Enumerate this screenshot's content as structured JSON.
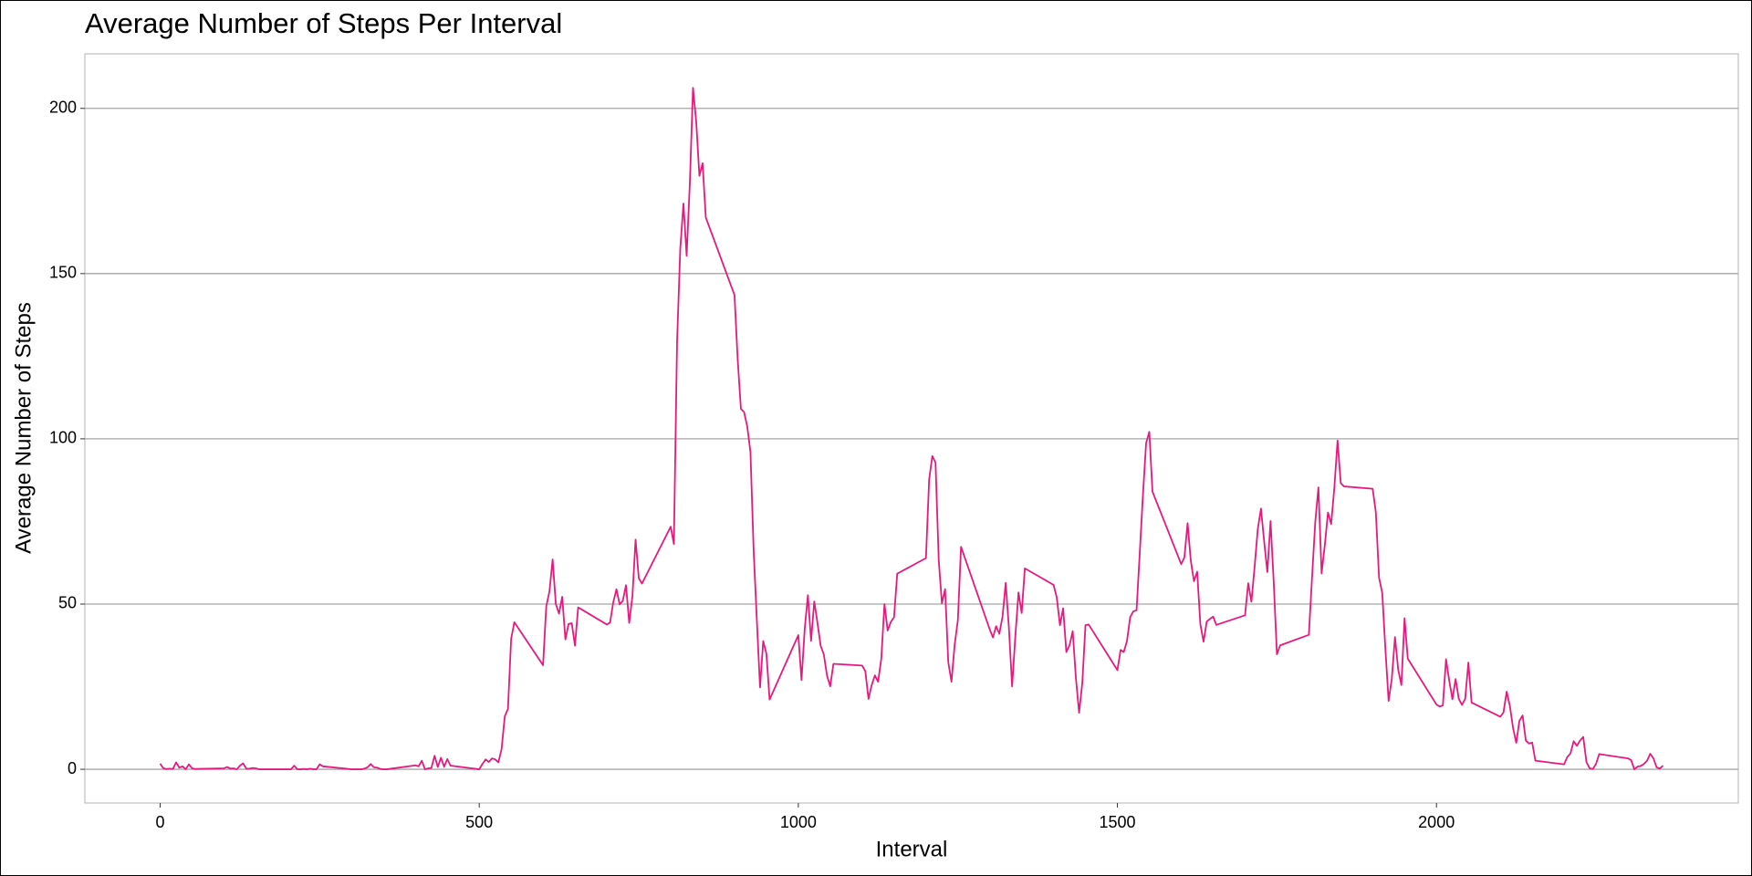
{
  "chart_data": {
    "type": "line",
    "title": "Average Number of Steps Per Interval",
    "x_label": "Interval",
    "y_label": "Average Number of Steps",
    "color": "#e6197f",
    "grid": true,
    "xlim": [
      -118,
      2473
    ],
    "ylim": [
      -10.2,
      216.5
    ],
    "xticks": [
      0,
      500,
      1000,
      1500,
      2000
    ],
    "yticks": [
      0,
      50,
      100,
      150,
      200
    ],
    "x": [
      0,
      5,
      10,
      15,
      20,
      25,
      30,
      35,
      40,
      45,
      50,
      55,
      100,
      105,
      110,
      115,
      120,
      125,
      130,
      135,
      140,
      145,
      150,
      155,
      200,
      205,
      210,
      215,
      220,
      225,
      230,
      235,
      240,
      245,
      250,
      255,
      300,
      305,
      310,
      315,
      320,
      325,
      330,
      335,
      340,
      345,
      350,
      355,
      400,
      405,
      410,
      415,
      420,
      425,
      430,
      435,
      440,
      445,
      450,
      455,
      500,
      505,
      510,
      515,
      520,
      525,
      530,
      535,
      540,
      545,
      550,
      555,
      600,
      605,
      610,
      615,
      620,
      625,
      630,
      635,
      640,
      645,
      650,
      655,
      700,
      705,
      710,
      715,
      720,
      725,
      730,
      735,
      740,
      745,
      750,
      755,
      800,
      805,
      810,
      815,
      820,
      825,
      830,
      835,
      840,
      845,
      850,
      855,
      900,
      905,
      910,
      915,
      920,
      925,
      930,
      935,
      940,
      945,
      950,
      955,
      1000,
      1005,
      1010,
      1015,
      1020,
      1025,
      1030,
      1035,
      1040,
      1045,
      1050,
      1055,
      1100,
      1105,
      1110,
      1115,
      1120,
      1125,
      1130,
      1135,
      1140,
      1145,
      1150,
      1155,
      1200,
      1205,
      1210,
      1215,
      1220,
      1225,
      1230,
      1235,
      1240,
      1245,
      1250,
      1255,
      1300,
      1305,
      1310,
      1315,
      1320,
      1325,
      1330,
      1335,
      1340,
      1345,
      1350,
      1355,
      1400,
      1405,
      1410,
      1415,
      1420,
      1425,
      1430,
      1435,
      1440,
      1445,
      1450,
      1455,
      1500,
      1505,
      1510,
      1515,
      1520,
      1525,
      1530,
      1535,
      1540,
      1545,
      1550,
      1555,
      1600,
      1605,
      1610,
      1615,
      1620,
      1625,
      1630,
      1635,
      1640,
      1645,
      1650,
      1655,
      1700,
      1705,
      1710,
      1715,
      1720,
      1725,
      1730,
      1735,
      1740,
      1745,
      1750,
      1755,
      1800,
      1805,
      1810,
      1815,
      1820,
      1825,
      1830,
      1835,
      1840,
      1845,
      1850,
      1855,
      1900,
      1905,
      1910,
      1915,
      1920,
      1925,
      1930,
      1935,
      1940,
      1945,
      1950,
      1955,
      2000,
      2005,
      2010,
      2015,
      2020,
      2025,
      2030,
      2035,
      2040,
      2045,
      2050,
      2055,
      2100,
      2105,
      2110,
      2115,
      2120,
      2125,
      2130,
      2135,
      2140,
      2145,
      2150,
      2155,
      2200,
      2205,
      2210,
      2215,
      2220,
      2225,
      2230,
      2235,
      2240,
      2245,
      2250,
      2255,
      2300,
      2305,
      2310,
      2315,
      2320,
      2325,
      2330,
      2335,
      2340,
      2345,
      2350,
      2355
    ],
    "values": [
      1.7,
      0.3,
      0.1,
      0.2,
      0.1,
      2.1,
      0.5,
      0.9,
      0,
      1.5,
      0.3,
      0.1,
      0.3,
      0.7,
      0.2,
      0.3,
      0,
      1.1,
      1.8,
      0.2,
      0.2,
      0.4,
      0.3,
      0,
      0,
      0,
      1.1,
      0,
      0,
      0.1,
      0,
      0.2,
      0,
      0,
      1.5,
      0.9,
      0,
      0,
      0,
      0,
      0.2,
      0.6,
      1.6,
      0.6,
      0.5,
      0.1,
      0,
      0,
      1.2,
      0.9,
      2.6,
      0,
      0.3,
      0.4,
      4.1,
      0.7,
      3.5,
      0.8,
      3.1,
      1.1,
      0,
      1.6,
      3,
      2.2,
      3.3,
      3,
      2.1,
      6.1,
      16,
      18.3,
      39.5,
      44.5,
      31.5,
      49.3,
      53.8,
      63.5,
      50,
      47.1,
      52.2,
      39.3,
      44,
      44.2,
      37.4,
      49,
      43.8,
      44.4,
      50.5,
      54.5,
      49.9,
      51,
      55.7,
      44.3,
      52.3,
      69.5,
      57.8,
      56.2,
      73.4,
      68.2,
      129.4,
      157.5,
      171.2,
      155.4,
      177.3,
      206.2,
      195.9,
      179.6,
      183.4,
      167,
      143.5,
      124,
      109.1,
      108.1,
      103.7,
      96,
      66.2,
      45.2,
      24.8,
      38.8,
      35,
      21.1,
      40.6,
      27,
      42.4,
      52.7,
      38.9,
      50.8,
      44.3,
      37.4,
      34.7,
      28.3,
      25.1,
      31.9,
      31.4,
      29.7,
      21.3,
      25.5,
      28.4,
      26.5,
      33.4,
      50,
      42,
      44.6,
      46,
      59.2,
      63.9,
      87.7,
      94.8,
      92.8,
      63.4,
      50.2,
      54.5,
      32.4,
      26.5,
      37.7,
      45.1,
      67.3,
      42.3,
      39.9,
      43.3,
      41,
      46.2,
      56.4,
      42.8,
      25.1,
      40,
      53.5,
      47.3,
      60.8,
      55.8,
      52,
      43.6,
      48.7,
      35.5,
      37.5,
      41.8,
      27.5,
      17.1,
      26.1,
      43.6,
      43.8,
      30,
      36.1,
      35.5,
      38.8,
      46,
      47.8,
      48.1,
      65.3,
      82.9,
      98.7,
      102.1,
      84,
      62.1,
      64.1,
      74.5,
      63.2,
      56.9,
      59.8,
      43.9,
      38.6,
      44.7,
      45.5,
      46.2,
      43.7,
      46.6,
      56.3,
      50.7,
      61.2,
      72.7,
      78.9,
      68.9,
      59.7,
      75.1,
      56.5,
      34.8,
      37.5,
      40.7,
      58,
      74.7,
      85.3,
      59.3,
      67.8,
      77.7,
      74.2,
      85.3,
      99.5,
      86.6,
      85.6,
      84.9,
      77.8,
      58,
      53.4,
      36.3,
      20.7,
      27.4,
      40,
      30.2,
      25.5,
      45.7,
      33.5,
      19.6,
      19,
      19.3,
      33.3,
      26.8,
      21.2,
      27.3,
      21.3,
      19.5,
      21.3,
      32.3,
      20.2,
      15.9,
      17.2,
      23.5,
      19.2,
      12.5,
      8,
      14.7,
      16.3,
      8.7,
      7.8,
      8.1,
      2.6,
      1.5,
      3.7,
      4.8,
      8.5,
      7.1,
      8.7,
      9.8,
      2.2,
      0.3,
      0.1,
      1.6,
      4.6,
      3.3,
      2.8,
      0,
      0.8,
      1,
      1.6,
      2.6,
      4.7,
      3.3,
      0.6,
      0.2,
      1.1
    ]
  }
}
